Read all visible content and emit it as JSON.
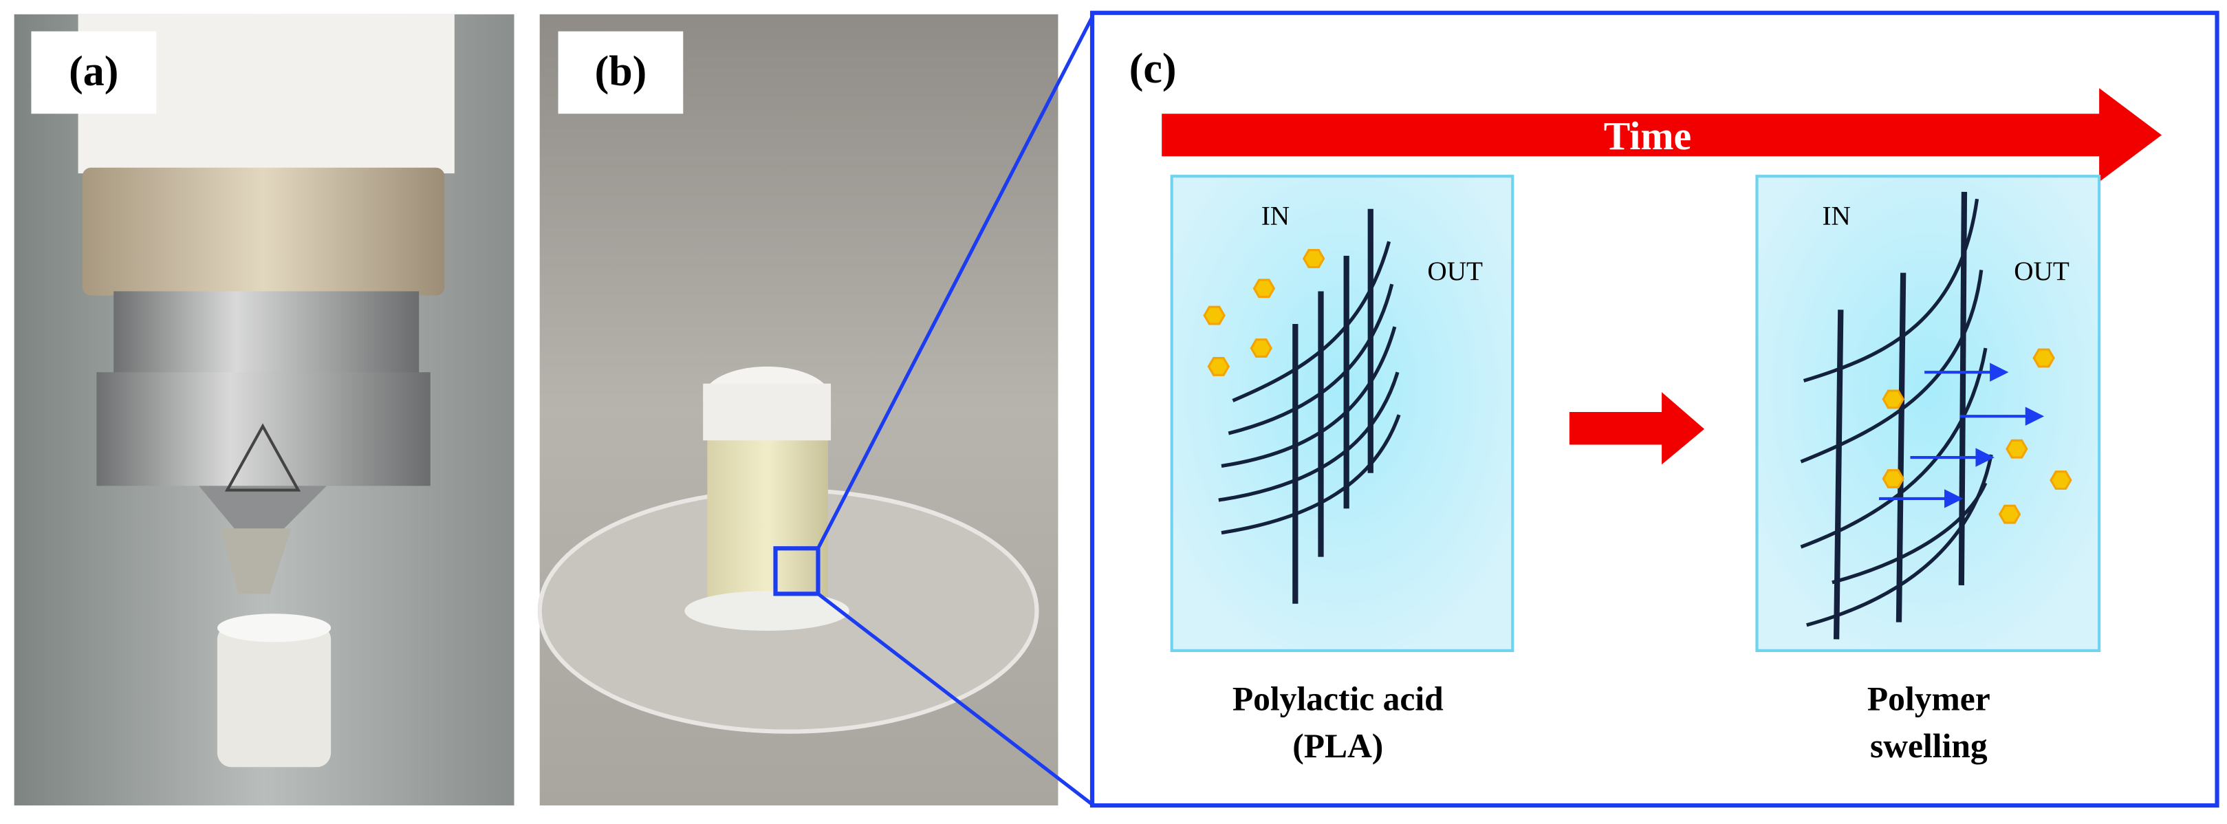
{
  "panels": {
    "a": {
      "label": "(a)"
    },
    "b": {
      "label": "(b)"
    },
    "c": {
      "label": "(c)",
      "time_label": "Time",
      "left_box": {
        "in_label": "IN",
        "out_label": "OUT",
        "caption": [
          "Polylactic acid",
          "(PLA)"
        ]
      },
      "right_box": {
        "in_label": "IN",
        "out_label": "OUT",
        "caption": [
          "Polymer",
          "swelling"
        ]
      }
    }
  }
}
